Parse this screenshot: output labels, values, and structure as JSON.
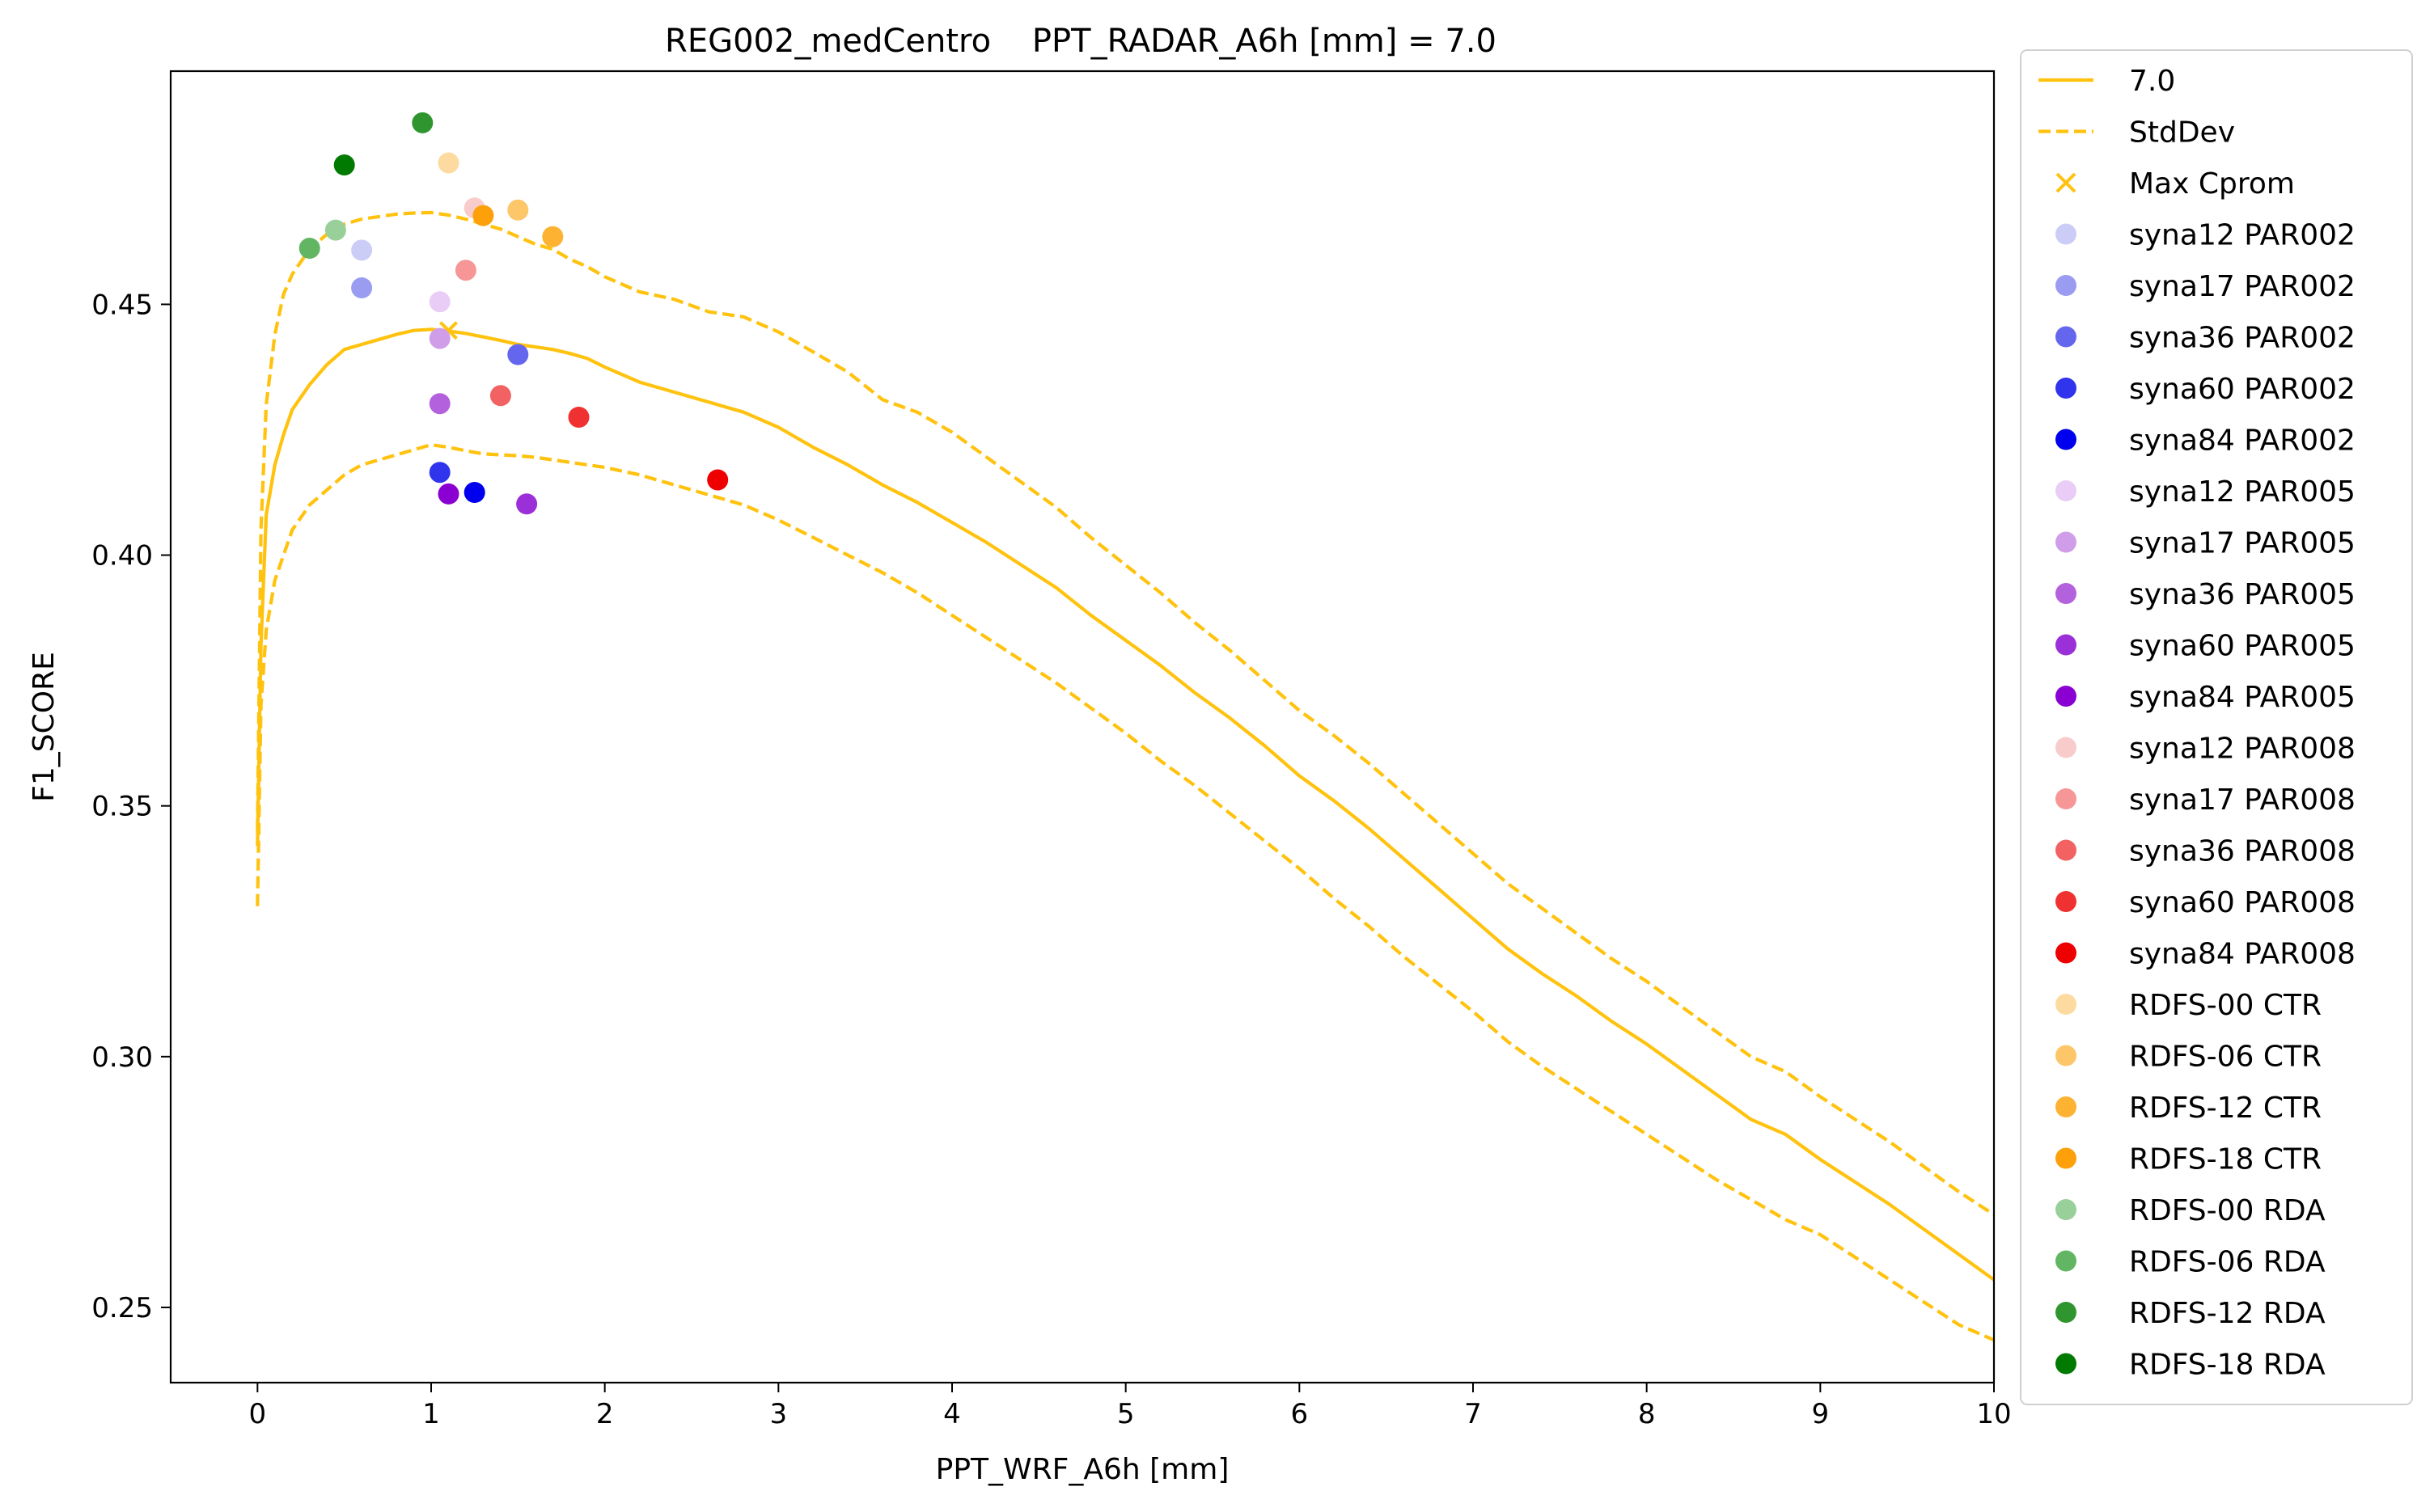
{
  "chart_data": {
    "type": "line",
    "title": "REG002_medCentro    PPT_RADAR_A6h [mm] = 7.0",
    "xlabel": "PPT_WRF_A6h [mm]",
    "ylabel": "F1_SCORE",
    "xlim": [
      -0.5,
      10
    ],
    "ylim": [
      0.235,
      0.4965
    ],
    "xticks": [
      0,
      1,
      2,
      3,
      4,
      5,
      6,
      7,
      8,
      9,
      10
    ],
    "xtick_labels": [
      "0",
      "1",
      "2",
      "3",
      "4",
      "5",
      "6",
      "7",
      "8",
      "9",
      "10"
    ],
    "yticks": [
      0.25,
      0.3,
      0.35,
      0.4,
      0.45
    ],
    "ytick_labels": [
      "0.25",
      "0.30",
      "0.35",
      "0.40",
      "0.45"
    ],
    "grid": false,
    "legend_position": "outside-right",
    "line_color": "#ffc20e",
    "series": [
      {
        "name": "7.0",
        "style": "solid",
        "color": "#ffc20e",
        "x": [
          0,
          0.02,
          0.05,
          0.1,
          0.15,
          0.2,
          0.3,
          0.4,
          0.5,
          0.6,
          0.7,
          0.8,
          0.9,
          1.0,
          1.1,
          1.2,
          1.3,
          1.4,
          1.5,
          1.6,
          1.7,
          1.8,
          1.9,
          2.0,
          2.2,
          2.4,
          2.6,
          2.8,
          3.0,
          3.2,
          3.4,
          3.6,
          3.8,
          4.0,
          4.2,
          4.4,
          4.6,
          4.8,
          5.0,
          5.2,
          5.4,
          5.6,
          5.8,
          6.0,
          6.2,
          6.4,
          6.6,
          6.8,
          7.0,
          7.2,
          7.4,
          7.6,
          7.8,
          8.0,
          8.2,
          8.4,
          8.6,
          8.8,
          9.0,
          9.2,
          9.4,
          9.6,
          9.8,
          10.0
        ],
        "y": [
          0.342,
          0.382,
          0.408,
          0.418,
          0.424,
          0.429,
          0.434,
          0.438,
          0.441,
          0.442,
          0.443,
          0.444,
          0.4448,
          0.445,
          0.4447,
          0.4442,
          0.4435,
          0.4428,
          0.442,
          0.4415,
          0.441,
          0.4402,
          0.4392,
          0.4375,
          0.4345,
          0.4325,
          0.4305,
          0.4285,
          0.4255,
          0.4215,
          0.418,
          0.414,
          0.4105,
          0.4065,
          0.4025,
          0.398,
          0.3935,
          0.388,
          0.383,
          0.378,
          0.3725,
          0.3675,
          0.362,
          0.356,
          0.351,
          0.3455,
          0.3395,
          0.3335,
          0.3275,
          0.3215,
          0.3165,
          0.312,
          0.307,
          0.3025,
          0.2975,
          0.2925,
          0.2875,
          0.2845,
          0.2795,
          0.275,
          0.2705,
          0.2655,
          0.2605,
          0.2555
        ]
      },
      {
        "name": "StdDev",
        "style": "dashed",
        "color": "#ffc20e",
        "x": [
          0,
          0.02,
          0.05,
          0.1,
          0.15,
          0.2,
          0.3,
          0.4,
          0.5,
          0.6,
          0.7,
          0.8,
          0.9,
          1.0,
          1.1,
          1.2,
          1.3,
          1.4,
          1.5,
          1.6,
          1.7,
          1.8,
          1.9,
          2.0,
          2.2,
          2.4,
          2.6,
          2.8,
          3.0,
          3.2,
          3.4,
          3.6,
          3.8,
          4.0,
          4.2,
          4.4,
          4.6,
          4.8,
          5.0,
          5.2,
          5.4,
          5.6,
          5.8,
          6.0,
          6.2,
          6.4,
          6.6,
          6.8,
          7.0,
          7.2,
          7.4,
          7.6,
          7.8,
          8.0,
          8.2,
          8.4,
          8.6,
          8.8,
          9.0,
          9.2,
          9.4,
          9.6,
          9.8,
          10.0
        ],
        "y": [
          0.345,
          0.405,
          0.43,
          0.444,
          0.452,
          0.456,
          0.461,
          0.464,
          0.466,
          0.467,
          0.4675,
          0.468,
          0.4682,
          0.4683,
          0.4678,
          0.467,
          0.466,
          0.465,
          0.4635,
          0.462,
          0.461,
          0.459,
          0.4575,
          0.4555,
          0.4525,
          0.451,
          0.4485,
          0.4475,
          0.4445,
          0.4405,
          0.4365,
          0.431,
          0.4285,
          0.4245,
          0.4195,
          0.4145,
          0.4095,
          0.4035,
          0.398,
          0.3925,
          0.3865,
          0.381,
          0.375,
          0.369,
          0.364,
          0.3585,
          0.3525,
          0.3465,
          0.3405,
          0.3345,
          0.3295,
          0.3245,
          0.3195,
          0.315,
          0.31,
          0.305,
          0.3,
          0.297,
          0.292,
          0.2875,
          0.283,
          0.278,
          0.273,
          0.2685
        ]
      },
      {
        "name": "",
        "style": "dashed",
        "color": "#ffc20e",
        "x": [
          0,
          0.02,
          0.05,
          0.1,
          0.15,
          0.2,
          0.3,
          0.4,
          0.5,
          0.6,
          0.7,
          0.8,
          0.9,
          1.0,
          1.1,
          1.2,
          1.3,
          1.4,
          1.5,
          1.6,
          1.7,
          1.8,
          1.9,
          2.0,
          2.2,
          2.4,
          2.6,
          2.8,
          3.0,
          3.2,
          3.4,
          3.6,
          3.8,
          4.0,
          4.2,
          4.4,
          4.6,
          4.8,
          5.0,
          5.2,
          5.4,
          5.6,
          5.8,
          6.0,
          6.2,
          6.4,
          6.6,
          6.8,
          7.0,
          7.2,
          7.4,
          7.6,
          7.8,
          8.0,
          8.2,
          8.4,
          8.6,
          8.8,
          9.0,
          9.2,
          9.4,
          9.6,
          9.8,
          10.0
        ],
        "y": [
          0.33,
          0.37,
          0.385,
          0.395,
          0.4,
          0.405,
          0.41,
          0.413,
          0.416,
          0.418,
          0.419,
          0.42,
          0.421,
          0.422,
          0.4215,
          0.4208,
          0.4202,
          0.42,
          0.4198,
          0.4195,
          0.419,
          0.4185,
          0.418,
          0.4175,
          0.416,
          0.414,
          0.412,
          0.41,
          0.407,
          0.4035,
          0.4,
          0.3965,
          0.3925,
          0.388,
          0.3835,
          0.379,
          0.3745,
          0.3695,
          0.3645,
          0.359,
          0.354,
          0.3485,
          0.343,
          0.3375,
          0.3315,
          0.326,
          0.32,
          0.3145,
          0.309,
          0.303,
          0.298,
          0.2935,
          0.289,
          0.2845,
          0.28,
          0.2755,
          0.2715,
          0.2675,
          0.2645,
          0.26,
          0.2555,
          0.251,
          0.2465,
          0.2435
        ]
      }
    ],
    "max_cprom": {
      "label": "Max Cprom",
      "x": 1.1,
      "y": 0.4448,
      "color": "#ffc20e"
    },
    "scatter": [
      {
        "name": "syna12 PAR002",
        "x": 0.6,
        "y": 0.4608,
        "color": "#cccdf7"
      },
      {
        "name": "syna17 PAR002",
        "x": 0.6,
        "y": 0.4533,
        "color": "#9a9cf2"
      },
      {
        "name": "syna36 PAR002",
        "x": 1.5,
        "y": 0.44,
        "color": "#6467ee"
      },
      {
        "name": "syna60 PAR002",
        "x": 1.05,
        "y": 0.4165,
        "color": "#3034ec"
      },
      {
        "name": "syna84 PAR002",
        "x": 1.25,
        "y": 0.4125,
        "color": "#0000ee"
      },
      {
        "name": "syna12 PAR005",
        "x": 1.05,
        "y": 0.4505,
        "color": "#e9cdf6"
      },
      {
        "name": "syna17 PAR005",
        "x": 1.05,
        "y": 0.4432,
        "color": "#d09ee8"
      },
      {
        "name": "syna36 PAR005",
        "x": 1.05,
        "y": 0.4302,
        "color": "#b461de"
      },
      {
        "name": "syna60 PAR005",
        "x": 1.55,
        "y": 0.4102,
        "color": "#9c30d8"
      },
      {
        "name": "syna84 PAR005",
        "x": 1.1,
        "y": 0.4122,
        "color": "#8a00d2"
      },
      {
        "name": "syna12 PAR008",
        "x": 1.25,
        "y": 0.4692,
        "color": "#f9cccc"
      },
      {
        "name": "syna17 PAR008",
        "x": 1.2,
        "y": 0.4568,
        "color": "#f79696"
      },
      {
        "name": "syna36 PAR008",
        "x": 1.4,
        "y": 0.4318,
        "color": "#f26262"
      },
      {
        "name": "syna60 PAR008",
        "x": 1.85,
        "y": 0.4275,
        "color": "#f03131"
      },
      {
        "name": "syna84 PAR008",
        "x": 2.65,
        "y": 0.415,
        "color": "#ee0000"
      },
      {
        "name": "RDFS-00 CTR",
        "x": 1.1,
        "y": 0.4782,
        "color": "#fddba0"
      },
      {
        "name": "RDFS-06 CTR",
        "x": 1.5,
        "y": 0.4688,
        "color": "#fdc668"
      },
      {
        "name": "RDFS-12 CTR",
        "x": 1.7,
        "y": 0.4635,
        "color": "#fdb232"
      },
      {
        "name": "RDFS-18 CTR",
        "x": 1.3,
        "y": 0.4677,
        "color": "#fda00a"
      },
      {
        "name": "RDFS-00 RDA",
        "x": 0.45,
        "y": 0.4648,
        "color": "#99d099"
      },
      {
        "name": "RDFS-06 RDA",
        "x": 0.3,
        "y": 0.4612,
        "color": "#62b562"
      },
      {
        "name": "RDFS-12 RDA",
        "x": 0.95,
        "y": 0.4862,
        "color": "#2f962f"
      },
      {
        "name": "RDFS-18 RDA",
        "x": 0.5,
        "y": 0.4778,
        "color": "#007a00"
      }
    ]
  }
}
